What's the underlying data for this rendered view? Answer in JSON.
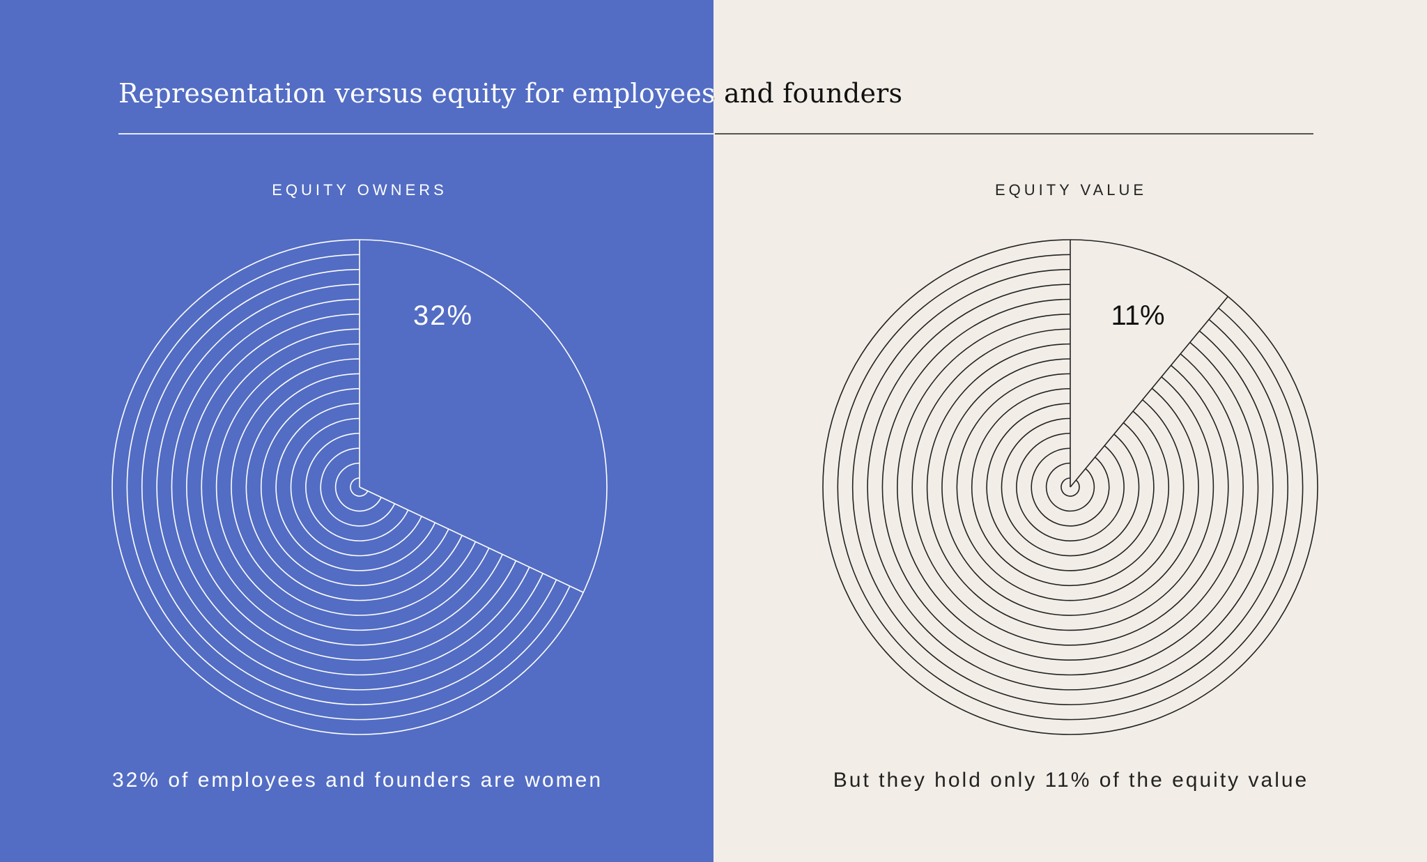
{
  "title": "Representation versus equity for employees and founders",
  "colors": {
    "left_background": "#536DC4",
    "right_background": "#F2EEE7",
    "left_ink": "#FFFFFF",
    "right_ink": "#222222"
  },
  "chart_data": [
    {
      "type": "pie",
      "title": "EQUITY OWNERS",
      "highlight_value": 32,
      "highlight_label": "32%",
      "values": [
        32,
        68
      ],
      "caption": "32% of employees and founders are women"
    },
    {
      "type": "pie",
      "title": "EQUITY VALUE",
      "highlight_value": 11,
      "highlight_label": "11%",
      "values": [
        11,
        89
      ],
      "caption": "But they hold only 11% of the equity value"
    }
  ]
}
